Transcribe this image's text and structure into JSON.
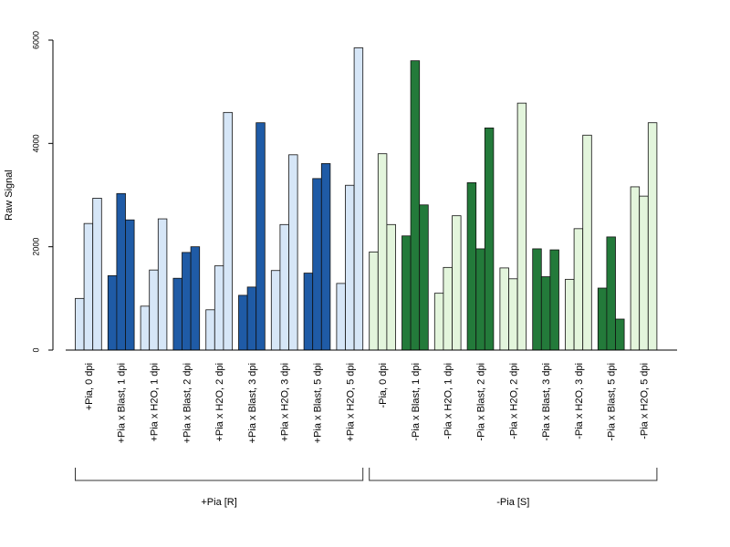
{
  "chart_data": {
    "type": "bar",
    "title": "",
    "xlabel": "",
    "ylabel": "Raw Signal",
    "ylim": [
      0,
      6000
    ],
    "yticks": [
      0,
      2000,
      4000,
      6000
    ],
    "grid": false,
    "colors": {
      "light_blue": "#d6e6f7",
      "dark_blue": "#1f5ba6",
      "light_green": "#e3f5dc",
      "dark_green": "#237a3a"
    },
    "categories": [
      {
        "label": "+Pia, 0 dpi",
        "values": [
          1000,
          2450,
          2940
        ],
        "color": "light_blue"
      },
      {
        "label": "+Pia x Blast, 1 dpi",
        "values": [
          1440,
          3030,
          2520
        ],
        "color": "dark_blue"
      },
      {
        "label": "+Pia x H2O, 1 dpi",
        "values": [
          850,
          1550,
          2540
        ],
        "color": "light_blue"
      },
      {
        "label": "+Pia x Blast, 2 dpi",
        "values": [
          1390,
          1890,
          2000
        ],
        "color": "dark_blue"
      },
      {
        "label": "+Pia x H2O, 2 dpi",
        "values": [
          780,
          1630,
          4600
        ],
        "color": "light_blue"
      },
      {
        "label": "+Pia x Blast, 3 dpi",
        "values": [
          1060,
          1220,
          4400
        ],
        "color": "dark_blue"
      },
      {
        "label": "+Pia x H2O, 3 dpi",
        "values": [
          1540,
          2430,
          3780
        ],
        "color": "light_blue"
      },
      {
        "label": "+Pia x Blast, 5 dpi",
        "values": [
          1490,
          3320,
          3610
        ],
        "color": "dark_blue"
      },
      {
        "label": "+Pia x H2O, 5 dpi",
        "values": [
          1290,
          3190,
          5850
        ],
        "color": "light_blue"
      },
      {
        "label": "-Pia, 0 dpi",
        "values": [
          1900,
          3800,
          2430
        ],
        "color": "light_green"
      },
      {
        "label": "-Pia x Blast, 1 dpi",
        "values": [
          2210,
          5600,
          2810
        ],
        "color": "dark_green"
      },
      {
        "label": "-Pia x H2O, 1 dpi",
        "values": [
          1100,
          1600,
          2600
        ],
        "color": "light_green"
      },
      {
        "label": "-Pia x Blast, 2 dpi",
        "values": [
          3240,
          1960,
          4300
        ],
        "color": "dark_green"
      },
      {
        "label": "-Pia x H2O, 2 dpi",
        "values": [
          1590,
          1380,
          4780
        ],
        "color": "light_green"
      },
      {
        "label": "-Pia x Blast, 3 dpi",
        "values": [
          1960,
          1420,
          1940
        ],
        "color": "dark_green"
      },
      {
        "label": "-Pia x H2O, 3 dpi",
        "values": [
          1370,
          2350,
          4160
        ],
        "color": "light_green"
      },
      {
        "label": "-Pia x Blast, 5 dpi",
        "values": [
          1200,
          2190,
          600
        ],
        "color": "dark_green"
      },
      {
        "label": "-Pia x H2O, 5 dpi",
        "values": [
          3160,
          2980,
          4400
        ],
        "color": "light_green"
      }
    ],
    "groups": [
      {
        "label": "+Pia [R]",
        "first": 0,
        "last": 8
      },
      {
        "label": "-Pia [S]",
        "first": 9,
        "last": 17
      }
    ]
  }
}
